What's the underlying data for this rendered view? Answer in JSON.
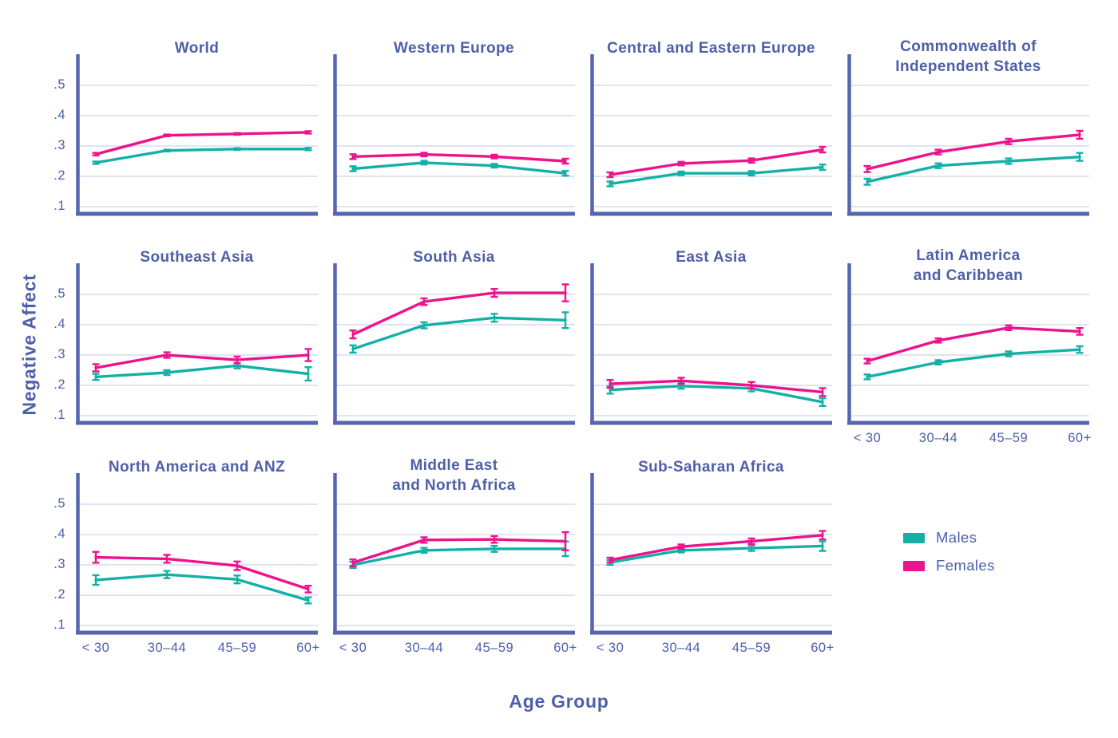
{
  "figure": {
    "ylabel": "Negative Affect",
    "xlabel": "Age Group",
    "legend": {
      "males_label": "Males",
      "females_label": "Females"
    }
  },
  "colors": {
    "males": "#14b0a6",
    "females": "#ec138d",
    "axis": "#5566ae",
    "grid": "#d6dbee",
    "text": "#4d5fa9"
  },
  "chart_data": {
    "type": "line",
    "title": "",
    "xlabel": "Age Group",
    "ylabel": "Negative Affect",
    "x_categories": [
      "< 30",
      "30–44",
      "45–59",
      "60+"
    ],
    "y_ticks": [
      0.5,
      0.4,
      0.3,
      0.2,
      0.1
    ],
    "y_tick_labels": [
      ".5",
      ".4",
      ".3",
      ".2",
      ".1"
    ],
    "ylim": [
      0.075,
      0.6
    ],
    "grid": true,
    "legend_position": "bottom-right",
    "series_names": [
      "Males",
      "Females"
    ],
    "error_bars": true,
    "panels": [
      {
        "title_lines": [
          "World"
        ],
        "row": 0,
        "col": 0,
        "males": {
          "values": [
            0.245,
            0.285,
            0.29,
            0.29
          ],
          "err": [
            0.004,
            0.003,
            0.003,
            0.004
          ]
        },
        "females": {
          "values": [
            0.273,
            0.335,
            0.34,
            0.345
          ],
          "err": [
            0.004,
            0.003,
            0.003,
            0.004
          ]
        }
      },
      {
        "title_lines": [
          "Western Europe"
        ],
        "row": 0,
        "col": 1,
        "males": {
          "values": [
            0.225,
            0.245,
            0.235,
            0.21
          ],
          "err": [
            0.008,
            0.006,
            0.006,
            0.008
          ]
        },
        "females": {
          "values": [
            0.265,
            0.272,
            0.265,
            0.25
          ],
          "err": [
            0.008,
            0.006,
            0.006,
            0.008
          ]
        }
      },
      {
        "title_lines": [
          "Central and Eastern Europe"
        ],
        "row": 0,
        "col": 2,
        "males": {
          "values": [
            0.175,
            0.21,
            0.21,
            0.23
          ],
          "err": [
            0.008,
            0.006,
            0.007,
            0.009
          ]
        },
        "females": {
          "values": [
            0.205,
            0.242,
            0.252,
            0.288
          ],
          "err": [
            0.008,
            0.006,
            0.007,
            0.009
          ]
        }
      },
      {
        "title_lines": [
          "Commonwealth of",
          "Independent States"
        ],
        "row": 0,
        "col": 3,
        "males": {
          "values": [
            0.182,
            0.235,
            0.25,
            0.264
          ],
          "err": [
            0.01,
            0.008,
            0.009,
            0.013
          ]
        },
        "females": {
          "values": [
            0.224,
            0.28,
            0.315,
            0.337
          ],
          "err": [
            0.01,
            0.008,
            0.009,
            0.013
          ]
        }
      },
      {
        "title_lines": [
          "Southeast Asia"
        ],
        "row": 1,
        "col": 0,
        "males": {
          "values": [
            0.228,
            0.242,
            0.265,
            0.238
          ],
          "err": [
            0.01,
            0.008,
            0.009,
            0.022
          ]
        },
        "females": {
          "values": [
            0.258,
            0.3,
            0.284,
            0.3
          ],
          "err": [
            0.012,
            0.009,
            0.011,
            0.02
          ]
        }
      },
      {
        "title_lines": [
          "South Asia"
        ],
        "row": 1,
        "col": 1,
        "males": {
          "values": [
            0.32,
            0.398,
            0.423,
            0.415
          ],
          "err": [
            0.012,
            0.01,
            0.013,
            0.026
          ]
        },
        "females": {
          "values": [
            0.368,
            0.476,
            0.505,
            0.505
          ],
          "err": [
            0.013,
            0.011,
            0.013,
            0.028
          ]
        }
      },
      {
        "title_lines": [
          "East Asia"
        ],
        "row": 1,
        "col": 2,
        "males": {
          "values": [
            0.185,
            0.198,
            0.19,
            0.145
          ],
          "err": [
            0.012,
            0.009,
            0.01,
            0.013
          ]
        },
        "females": {
          "values": [
            0.205,
            0.215,
            0.2,
            0.178
          ],
          "err": [
            0.013,
            0.01,
            0.011,
            0.013
          ]
        }
      },
      {
        "title_lines": [
          "Latin America",
          "and Caribbean"
        ],
        "row": 1,
        "col": 3,
        "males": {
          "values": [
            0.228,
            0.276,
            0.304,
            0.318
          ],
          "err": [
            0.008,
            0.007,
            0.008,
            0.011
          ]
        },
        "females": {
          "values": [
            0.28,
            0.348,
            0.39,
            0.378
          ],
          "err": [
            0.008,
            0.007,
            0.008,
            0.011
          ]
        }
      },
      {
        "title_lines": [
          "North America and ANZ"
        ],
        "row": 2,
        "col": 0,
        "males": {
          "values": [
            0.25,
            0.268,
            0.252,
            0.183
          ],
          "err": [
            0.016,
            0.012,
            0.013,
            0.01
          ]
        },
        "females": {
          "values": [
            0.325,
            0.32,
            0.297,
            0.22
          ],
          "err": [
            0.018,
            0.013,
            0.014,
            0.011
          ]
        }
      },
      {
        "title_lines": [
          "Middle East",
          "and North Africa"
        ],
        "row": 2,
        "col": 1,
        "males": {
          "values": [
            0.3,
            0.348,
            0.353,
            0.353
          ],
          "err": [
            0.01,
            0.008,
            0.01,
            0.024
          ]
        },
        "females": {
          "values": [
            0.307,
            0.382,
            0.384,
            0.378
          ],
          "err": [
            0.011,
            0.009,
            0.011,
            0.03
          ]
        }
      },
      {
        "title_lines": [
          "Sub-Saharan Africa"
        ],
        "row": 2,
        "col": 2,
        "males": {
          "values": [
            0.308,
            0.348,
            0.355,
            0.362
          ],
          "err": [
            0.008,
            0.007,
            0.009,
            0.016
          ]
        },
        "females": {
          "values": [
            0.316,
            0.36,
            0.378,
            0.398
          ],
          "err": [
            0.008,
            0.007,
            0.009,
            0.014
          ]
        }
      }
    ]
  }
}
